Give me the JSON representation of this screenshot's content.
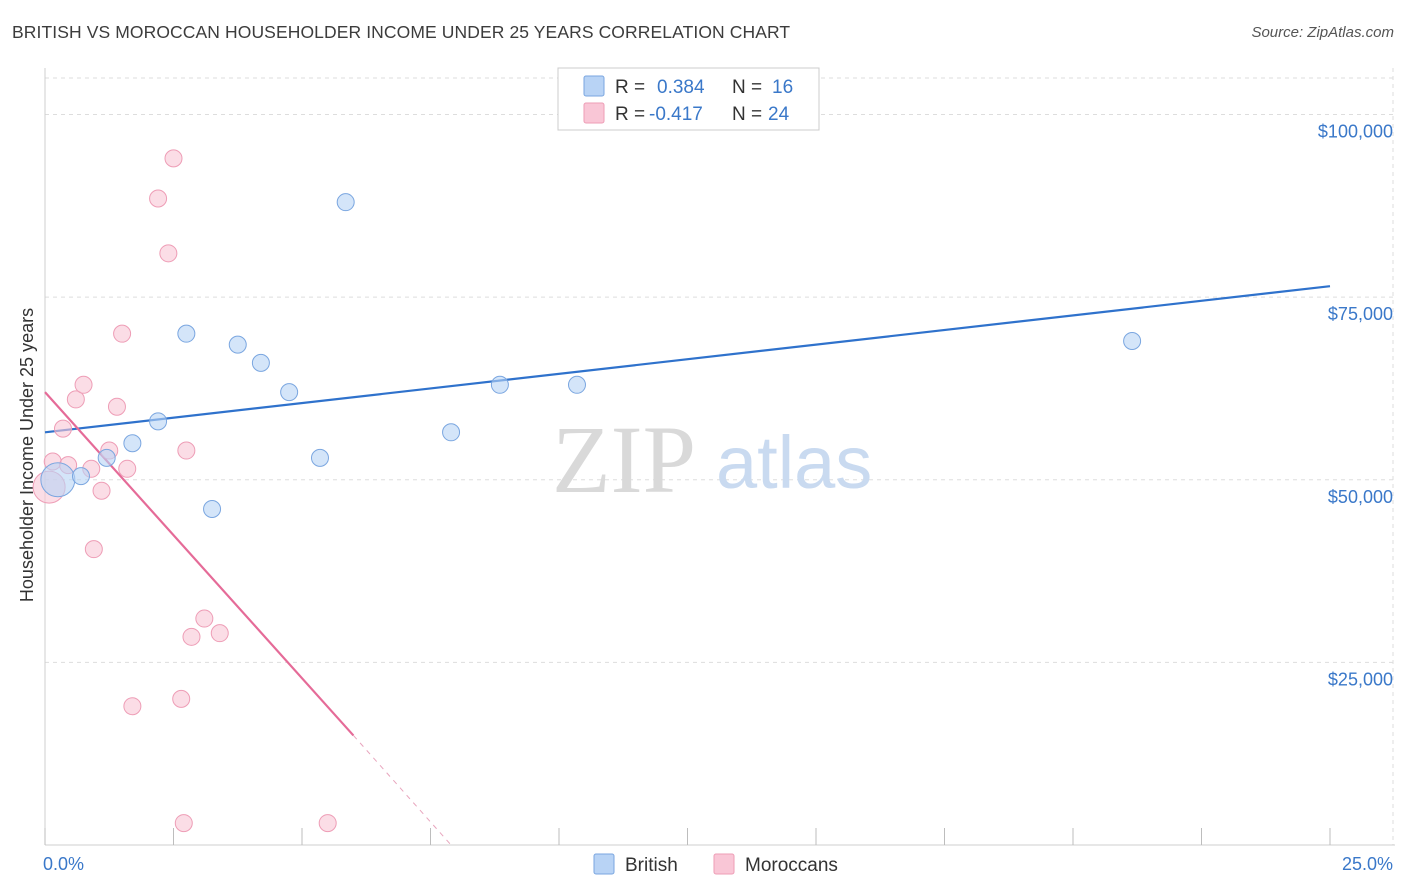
{
  "title": "BRITISH VS MOROCCAN HOUSEHOLDER INCOME UNDER 25 YEARS CORRELATION CHART",
  "source": "Source: ZipAtlas.com",
  "watermark": {
    "zip": "ZIP",
    "atlas": "atlas"
  },
  "colors": {
    "british_fill": "#b8d3f5",
    "british_stroke": "#7aa6e0",
    "british_line": "#2f72cc",
    "moroccan_fill": "#f9c6d6",
    "moroccan_stroke": "#ee9db6",
    "moroccan_line": "#e56b98",
    "value_blue": "#3a78c9",
    "grid": "#dddddd"
  },
  "legend_top": {
    "rows": [
      {
        "r_label": "R =",
        "r_value": "0.384",
        "n_label": "N =",
        "n_value": "16"
      },
      {
        "r_label": "R =",
        "r_value": "-0.417",
        "n_label": "N =",
        "n_value": "24"
      }
    ]
  },
  "legend_bottom": {
    "british": "British",
    "moroccans": "Moroccans"
  },
  "chart_data": {
    "type": "scatter",
    "title": "BRITISH VS MOROCCAN HOUSEHOLDER INCOME UNDER 25 YEARS CORRELATION CHART",
    "xlabel": "",
    "ylabel": "Householder Income Under 25 years",
    "xlim": [
      0,
      25
    ],
    "ylim": [
      0,
      105000
    ],
    "x_tick_labels": [
      "0.0%",
      "25.0%"
    ],
    "y_ticks": [
      25000,
      50000,
      75000,
      100000
    ],
    "y_tick_labels": [
      "$25,000",
      "$50,000",
      "$75,000",
      "$100,000"
    ],
    "series": [
      {
        "name": "British",
        "r": 0.384,
        "n": 16,
        "points": [
          {
            "x": 0.25,
            "y": 50000,
            "size": "large"
          },
          {
            "x": 0.7,
            "y": 50500
          },
          {
            "x": 1.2,
            "y": 53000
          },
          {
            "x": 1.7,
            "y": 55000
          },
          {
            "x": 2.2,
            "y": 58000
          },
          {
            "x": 2.75,
            "y": 70000
          },
          {
            "x": 3.25,
            "y": 46000
          },
          {
            "x": 3.75,
            "y": 68500
          },
          {
            "x": 4.2,
            "y": 66000
          },
          {
            "x": 4.75,
            "y": 62000
          },
          {
            "x": 5.35,
            "y": 53000
          },
          {
            "x": 5.85,
            "y": 88000
          },
          {
            "x": 7.9,
            "y": 56500
          },
          {
            "x": 8.85,
            "y": 63000
          },
          {
            "x": 10.35,
            "y": 63000
          },
          {
            "x": 21.15,
            "y": 69000
          }
        ],
        "trend": {
          "x": [
            0,
            25
          ],
          "y": [
            56500,
            76500
          ]
        }
      },
      {
        "name": "Moroccans",
        "r": -0.417,
        "n": 24,
        "points": [
          {
            "x": 0.08,
            "y": 49000,
            "size": "large"
          },
          {
            "x": 0.15,
            "y": 52500
          },
          {
            "x": 0.35,
            "y": 57000
          },
          {
            "x": 0.45,
            "y": 52000
          },
          {
            "x": 0.6,
            "y": 61000
          },
          {
            "x": 0.75,
            "y": 63000
          },
          {
            "x": 0.9,
            "y": 51500
          },
          {
            "x": 0.95,
            "y": 40500
          },
          {
            "x": 1.1,
            "y": 48500
          },
          {
            "x": 1.25,
            "y": 54000
          },
          {
            "x": 1.4,
            "y": 60000
          },
          {
            "x": 1.5,
            "y": 70000
          },
          {
            "x": 1.6,
            "y": 51500
          },
          {
            "x": 1.7,
            "y": 19000
          },
          {
            "x": 2.2,
            "y": 88500
          },
          {
            "x": 2.4,
            "y": 81000
          },
          {
            "x": 2.5,
            "y": 94000
          },
          {
            "x": 2.65,
            "y": 20000
          },
          {
            "x": 2.7,
            "y": 3000
          },
          {
            "x": 2.75,
            "y": 54000
          },
          {
            "x": 2.85,
            "y": 28500
          },
          {
            "x": 3.1,
            "y": 31000
          },
          {
            "x": 3.4,
            "y": 29000
          },
          {
            "x": 5.5,
            "y": 3000
          }
        ],
        "trend": {
          "x": [
            0,
            6.0
          ],
          "y": [
            62000,
            15000
          ]
        },
        "trend_extension": {
          "x": [
            6.0,
            7.9
          ],
          "y": [
            15000,
            0
          ]
        }
      }
    ]
  }
}
